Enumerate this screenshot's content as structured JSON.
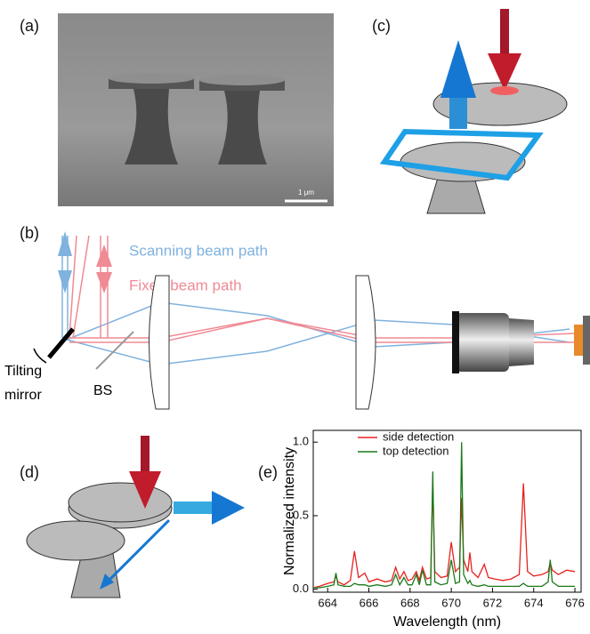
{
  "panels": {
    "a": {
      "label": "(a)",
      "scale_bar": "1 μm"
    },
    "b": {
      "label": "(b)",
      "scanning": "Scanning beam path",
      "fixed": "Fixed beam path",
      "mirror": [
        "Tilting",
        "mirror"
      ],
      "bs": "BS"
    },
    "c": {
      "label": "(c)"
    },
    "d": {
      "label": "(d)"
    },
    "e": {
      "label": "(e)"
    }
  },
  "chart_data": {
    "type": "line",
    "x_label": "Wavelength (nm)",
    "y_label": "Normalized intensity",
    "x": [
      663.3,
      663.6,
      664.0,
      664.3,
      664.4,
      664.5,
      664.8,
      665.1,
      665.3,
      665.5,
      665.8,
      666.0,
      666.4,
      666.8,
      667.1,
      667.3,
      667.5,
      667.7,
      667.9,
      668.1,
      668.3,
      668.45,
      668.6,
      668.8,
      669.0,
      669.1,
      669.2,
      669.5,
      669.8,
      670.0,
      670.2,
      670.4,
      670.5,
      670.6,
      670.8,
      670.9,
      671.0,
      671.3,
      671.6,
      671.8,
      672.1,
      672.5,
      672.9,
      673.3,
      673.5,
      673.7,
      674.0,
      674.4,
      674.7,
      674.8,
      674.9,
      675.2,
      675.6,
      676.0
    ],
    "series": [
      {
        "name": "side detection",
        "color": "#e8211f",
        "values": [
          0.01,
          0.02,
          0.04,
          0.05,
          0.09,
          0.05,
          0.03,
          0.06,
          0.26,
          0.08,
          0.11,
          0.05,
          0.07,
          0.05,
          0.06,
          0.15,
          0.07,
          0.12,
          0.06,
          0.07,
          0.12,
          0.06,
          0.15,
          0.07,
          0.08,
          0.72,
          0.12,
          0.08,
          0.09,
          0.32,
          0.12,
          0.15,
          0.62,
          0.2,
          0.12,
          0.25,
          0.12,
          0.08,
          0.17,
          0.08,
          0.07,
          0.06,
          0.07,
          0.1,
          0.72,
          0.12,
          0.09,
          0.1,
          0.12,
          0.18,
          0.13,
          0.1,
          0.13,
          0.12
        ]
      },
      {
        "name": "top detection",
        "color": "#1a7a1a",
        "values": [
          0.01,
          0.01,
          0.02,
          0.03,
          0.11,
          0.03,
          0.02,
          0.02,
          0.04,
          0.03,
          0.03,
          0.02,
          0.03,
          0.02,
          0.03,
          0.1,
          0.03,
          0.08,
          0.03,
          0.03,
          0.1,
          0.03,
          0.13,
          0.03,
          0.03,
          0.8,
          0.05,
          0.03,
          0.04,
          0.2,
          0.04,
          0.05,
          1.0,
          0.1,
          0.04,
          0.06,
          0.03,
          0.02,
          0.03,
          0.02,
          0.02,
          0.02,
          0.02,
          0.02,
          0.04,
          0.02,
          0.02,
          0.02,
          0.05,
          0.2,
          0.05,
          0.02,
          0.02,
          0.02
        ]
      }
    ],
    "xlim": [
      663.3,
      676.3
    ],
    "ylim": [
      -0.02,
      1.08
    ],
    "xticks": [
      664,
      666,
      668,
      670,
      672,
      674,
      676
    ],
    "yticks": [
      {
        "value": 0,
        "label": "0.0"
      },
      {
        "value": 0.5,
        "label": "0.5"
      },
      {
        "value": 1.0,
        "label": "1.0"
      }
    ],
    "legend": "upper-left"
  }
}
